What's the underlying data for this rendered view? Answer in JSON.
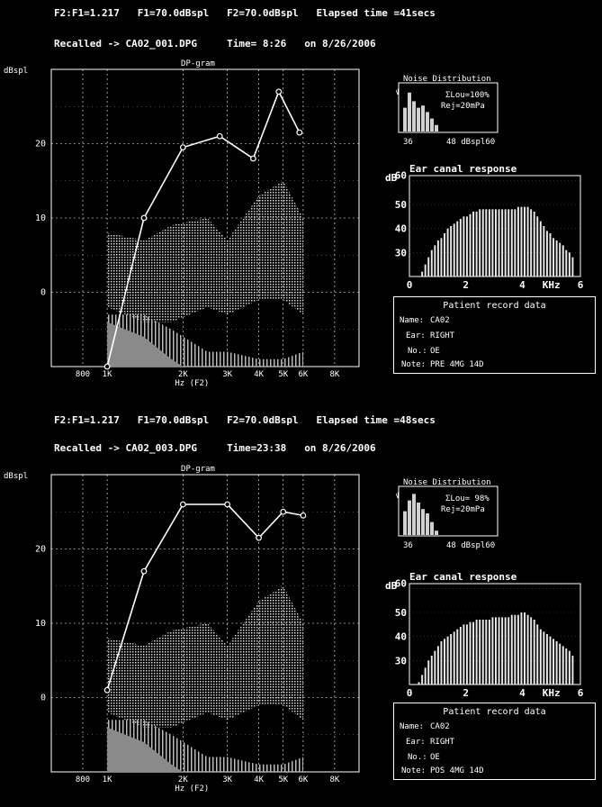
{
  "panels": [
    {
      "header1": {
        "ratio": "F2:F1=1.217",
        "f1": "F1=70.0dBspl",
        "f2": "F2=70.0dBspl",
        "elapsed": "Elapsed time =41secs"
      },
      "header2": {
        "recalled": "Recalled -> CA02_001.DPG",
        "time": "Time= 8:26",
        "date": "on 8/26/2006"
      },
      "noise": {
        "title": "Noise Distribution",
        "n_label": "N",
        "lou": "ΣLou=100%",
        "rej": "Rej=20mPa",
        "x_min": "36",
        "x_max": "48 dBspl60",
        "bars": [
          0.55,
          0.9,
          0.7,
          0.55,
          0.6,
          0.45,
          0.3,
          0.15
        ]
      },
      "ear": {
        "title": "Ear canal response",
        "unit": "dB",
        "yticks": [
          "60",
          "50",
          "40",
          "30"
        ],
        "xticks": [
          "0",
          "2",
          "4",
          "KHz",
          "6"
        ],
        "bars": [
          18,
          20,
          22,
          25,
          28,
          31,
          33,
          35,
          36,
          38,
          40,
          41,
          42,
          43,
          44,
          45,
          45,
          46,
          47,
          47,
          48,
          48,
          48,
          48,
          48,
          48,
          48,
          48,
          48,
          48,
          48,
          48,
          49,
          49,
          49,
          49,
          48,
          47,
          45,
          43,
          41,
          39,
          38,
          36,
          35,
          34,
          33,
          31,
          30,
          28
        ]
      },
      "record": {
        "title": "Patient record data",
        "name_label": "Name:",
        "name": "CA02",
        "ear_label": "Ear:",
        "ear": "RIGHT",
        "no_label": "No.:",
        "no": "OE",
        "note_label": "Note:",
        "note": "PRE 4MG 14D"
      }
    },
    {
      "header1": {
        "ratio": "F2:F1=1.217",
        "f1": "F1=70.0dBspl",
        "f2": "F2=70.0dBspl",
        "elapsed": "Elapsed time =48secs"
      },
      "header2": {
        "recalled": "Recalled -> CA02_003.DPG",
        "time": "Time=23:38",
        "date": "on 8/26/2006"
      },
      "noise": {
        "title": "Noise Distribution",
        "n_label": "N",
        "lou": "ΣLou= 98%",
        "rej": "Rej=20mPa",
        "x_min": "36",
        "x_max": "48 dBspl60",
        "bars": [
          0.55,
          0.8,
          0.95,
          0.75,
          0.6,
          0.5,
          0.3,
          0.1
        ]
      },
      "ear": {
        "title": "Ear canal response",
        "unit": "dB",
        "yticks": [
          "60",
          "50",
          "40",
          "30"
        ],
        "xticks": [
          "0",
          "2",
          "4",
          "KHz",
          "6"
        ],
        "bars": [
          18,
          21,
          24,
          27,
          30,
          32,
          34,
          36,
          38,
          39,
          40,
          41,
          42,
          43,
          44,
          45,
          45,
          46,
          46,
          47,
          47,
          47,
          47,
          47,
          48,
          48,
          48,
          48,
          48,
          48,
          49,
          49,
          49,
          50,
          50,
          49,
          48,
          47,
          45,
          43,
          42,
          41,
          40,
          39,
          38,
          37,
          36,
          35,
          34,
          32
        ]
      },
      "record": {
        "title": "Patient record data",
        "name_label": "Name:",
        "name": "CA02",
        "ear_label": "Ear:",
        "ear": "RIGHT",
        "no_label": "No.:",
        "no": "OE",
        "note_label": "Note:",
        "note": "POS 4MG 14D"
      }
    }
  ],
  "chart_data": [
    {
      "type": "line",
      "title": "DP-gram",
      "ylabel": "dBspl",
      "xlabel": "Hz (F2)",
      "xtick_labels": [
        "800",
        "1K",
        "2K",
        "3K",
        "4K",
        "5K",
        "6K",
        "8K"
      ],
      "xtick_freqs": [
        800,
        1000,
        2000,
        3000,
        4000,
        5000,
        6000,
        8000
      ],
      "ytick_labels": [
        "20",
        "10",
        "0"
      ],
      "ytick_values": [
        20,
        10,
        0
      ],
      "ylim": [
        -10,
        30
      ],
      "xlim": [
        600,
        10000
      ],
      "series": [
        {
          "x": [
            1000,
            1400,
            2000,
            2800,
            3800,
            4800,
            5800
          ],
          "y": [
            -10,
            10,
            19.5,
            21,
            18,
            27,
            21.5
          ]
        }
      ],
      "noise_upper": {
        "x": [
          1000,
          1400,
          1800,
          2500,
          3000,
          4000,
          5000,
          6000
        ],
        "hi": [
          8,
          7,
          9,
          10,
          7,
          13,
          15,
          10
        ],
        "lo": [
          -2,
          -4,
          -4,
          -2,
          -3,
          -1,
          -1,
          -3
        ]
      },
      "noise_lower": {
        "x": [
          1000,
          1400,
          1800,
          2500,
          3000,
          4000,
          5000,
          6000
        ],
        "hi": [
          -3,
          -3,
          -5,
          -8,
          -8,
          -9,
          -9,
          -8
        ],
        "lo": [
          -10,
          -10,
          -10,
          -10,
          -10,
          -10,
          -10,
          -10
        ]
      }
    },
    {
      "type": "line",
      "title": "DP-gram",
      "ylabel": "dBspl",
      "xlabel": "Hz (F2)",
      "xtick_labels": [
        "800",
        "1K",
        "2K",
        "3K",
        "4K",
        "5K",
        "6K",
        "8K"
      ],
      "xtick_freqs": [
        800,
        1000,
        2000,
        3000,
        4000,
        5000,
        6000,
        8000
      ],
      "ytick_labels": [
        "20",
        "10",
        "0"
      ],
      "ytick_values": [
        20,
        10,
        0
      ],
      "ylim": [
        -10,
        30
      ],
      "xlim": [
        600,
        10000
      ],
      "series": [
        {
          "x": [
            1000,
            1400,
            2000,
            3000,
            4000,
            5000,
            6000
          ],
          "y": [
            1,
            17,
            26,
            26,
            21.5,
            25,
            24.5
          ]
        }
      ],
      "noise_upper": {
        "x": [
          1000,
          1400,
          1800,
          2500,
          3000,
          4000,
          5000,
          6000
        ],
        "hi": [
          8,
          7,
          9,
          10,
          7,
          13,
          15,
          10
        ],
        "lo": [
          -2,
          -4,
          -4,
          -2,
          -3,
          -1,
          -1,
          -3
        ]
      },
      "noise_lower": {
        "x": [
          1000,
          1400,
          1800,
          2500,
          3000,
          4000,
          5000,
          6000
        ],
        "hi": [
          -3,
          -3,
          -5,
          -8,
          -8,
          -9,
          -9,
          -8
        ],
        "lo": [
          -10,
          -10,
          -10,
          -10,
          -10,
          -10,
          -10,
          -10
        ]
      }
    }
  ]
}
